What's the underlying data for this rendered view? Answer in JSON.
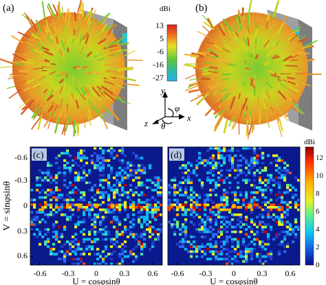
{
  "panels": {
    "a": "(a)",
    "b": "(b)",
    "c": "(c)",
    "d": "(d)"
  },
  "colorbar_top": {
    "unit": "dBi",
    "ticks": [
      "13",
      "5",
      "-6",
      "-16",
      "-27"
    ]
  },
  "colorbar_bottom": {
    "unit": "dBi",
    "ticks": [
      "12",
      "10",
      "8",
      "6",
      "4",
      "2",
      "0"
    ]
  },
  "axes_icon": {
    "y": "y",
    "z": "z",
    "x": "x",
    "phi": "φ",
    "theta": "θ"
  },
  "colors": {
    "pattern_orange": "#e8782a",
    "pattern_yellow": "#d8d21c",
    "pattern_green": "#5cc23a",
    "box_gray": "#8e8e8e",
    "map_background": "#0a1a8c",
    "cyan_patch": "#22c4e0"
  },
  "chart_data": [
    {
      "type": "heatmap",
      "panel": "(c)",
      "xlabel": "U = cosφsinθ",
      "ylabel": "V = sinφsinθ",
      "xticks": [
        "-0.6",
        "-0.3",
        "0",
        "0.3",
        "0.6"
      ],
      "yticks": [
        "-0.6",
        "-0.3",
        "0",
        "0.3",
        "0.6"
      ],
      "xlim": [
        -0.7,
        0.7
      ],
      "ylim": [
        0.7,
        -0.7
      ],
      "colorbar_range": [
        0,
        13
      ],
      "colorbar_unit": "dBi"
    },
    {
      "type": "heatmap",
      "panel": "(d)",
      "xlabel": "U = cosφsinθ",
      "ylabel": "",
      "xticks": [
        "-0.6",
        "-0.3",
        "0",
        "0.3",
        "0.6"
      ],
      "yticks": [],
      "xlim": [
        -0.7,
        0.7
      ],
      "ylim": [
        0.7,
        -0.7
      ],
      "colorbar_range": [
        0,
        13
      ],
      "colorbar_unit": "dBi"
    }
  ]
}
